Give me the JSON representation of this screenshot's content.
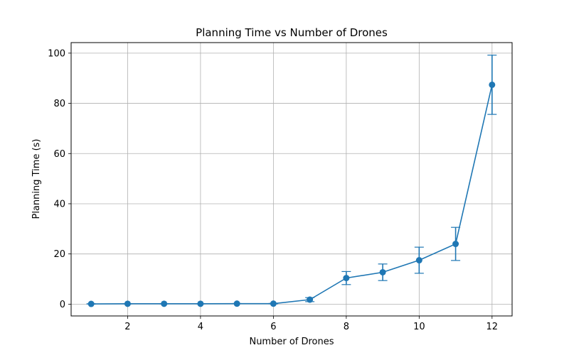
{
  "chart_data": {
    "type": "line",
    "title": "Planning Time vs Number of Drones",
    "xlabel": "Number of Drones",
    "ylabel": "Planning Time (s)",
    "xlim": [
      0.45,
      12.55
    ],
    "ylim": [
      -4.7,
      104.2
    ],
    "xticks": [
      2,
      4,
      6,
      8,
      10,
      12
    ],
    "yticks": [
      0,
      20,
      40,
      60,
      80,
      100
    ],
    "grid": true,
    "series": [
      {
        "color": "#1f77b4",
        "marker": "circle",
        "error_bars": true,
        "points": [
          {
            "x": 1,
            "y": 0.1,
            "err": 0.05
          },
          {
            "x": 2,
            "y": 0.15,
            "err": 0.05
          },
          {
            "x": 3,
            "y": 0.15,
            "err": 0.05
          },
          {
            "x": 4,
            "y": 0.15,
            "err": 0.05
          },
          {
            "x": 5,
            "y": 0.2,
            "err": 0.05
          },
          {
            "x": 6,
            "y": 0.2,
            "err": 0.1
          },
          {
            "x": 7,
            "y": 1.8,
            "err": 0.8
          },
          {
            "x": 8,
            "y": 10.4,
            "err": 2.6
          },
          {
            "x": 9,
            "y": 12.7,
            "err": 3.3
          },
          {
            "x": 10,
            "y": 17.5,
            "err": 5.2
          },
          {
            "x": 11,
            "y": 24.0,
            "err": 6.6
          },
          {
            "x": 12,
            "y": 87.4,
            "err": 11.8
          }
        ]
      }
    ]
  }
}
